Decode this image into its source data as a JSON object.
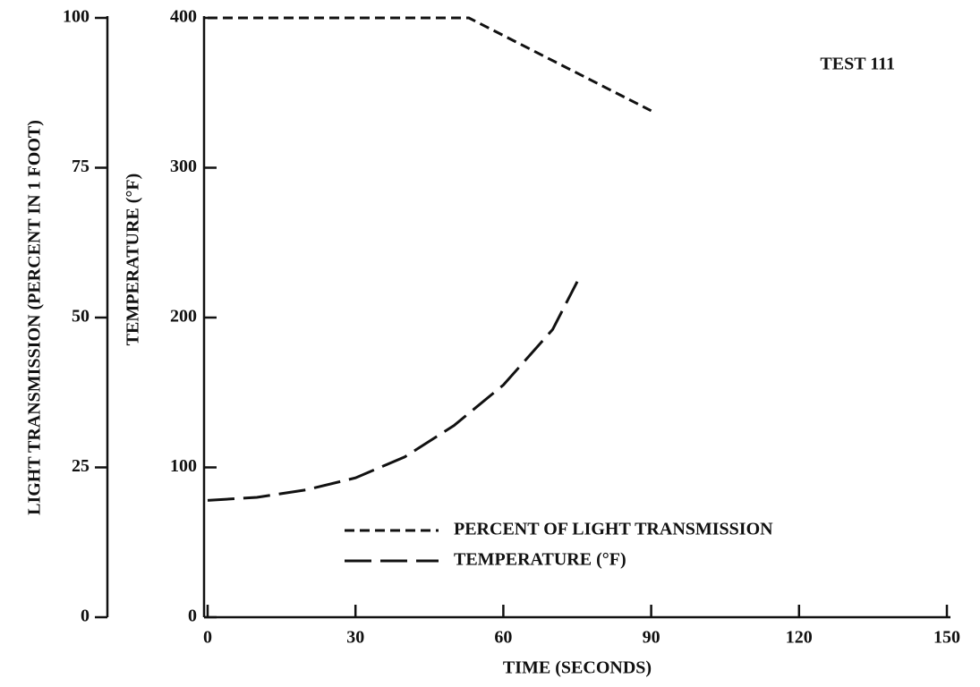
{
  "chart_data": {
    "type": "line",
    "annotation": "TEST 111",
    "x_label": "TIME (SECONDS)",
    "y_label": "LIGHT TRANSMISSION (PERCENT IN 1 FOOT)",
    "y2_label": "TEMPERATURE (°F)",
    "xlim": [
      0,
      150
    ],
    "xticks": [
      0,
      30,
      60,
      90,
      120,
      150
    ],
    "ylim": [
      0,
      100
    ],
    "yticks": [
      0,
      25,
      50,
      75,
      100
    ],
    "y2lim": [
      0,
      400
    ],
    "y2ticks": [
      0,
      100,
      200,
      300,
      400
    ],
    "legend": "lower right",
    "series": [
      {
        "name": "PERCENT OF LIGHT TRANSMISSION",
        "color": "#111111",
        "x": [
          0,
          53,
          90
        ],
        "values": [
          100,
          100,
          84.5
        ]
      },
      {
        "name": "TEMPERATURE (°F)",
        "color": "#111111",
        "axis": "y2",
        "x": [
          0,
          10,
          20,
          30,
          40,
          50,
          60,
          70,
          75
        ],
        "values": [
          78,
          80,
          85,
          93,
          107,
          128,
          155,
          192,
          224
        ]
      }
    ]
  }
}
